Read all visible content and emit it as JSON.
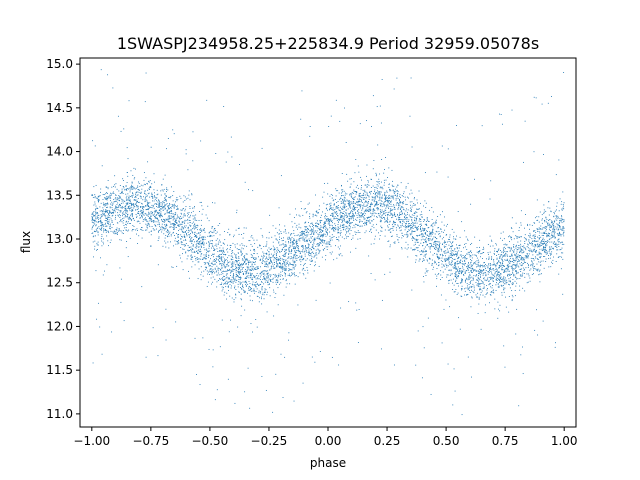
{
  "chart_data": {
    "type": "scatter",
    "title": "1SWASPJ234958.25+225834.9 Period 32959.05078s",
    "xlabel": "phase",
    "ylabel": "flux",
    "xlim": [
      -1.05,
      1.05
    ],
    "ylim": [
      10.85,
      15.07
    ],
    "xticks": [
      -1.0,
      -0.75,
      -0.5,
      -0.25,
      0.0,
      0.25,
      0.5,
      0.75,
      1.0
    ],
    "xtick_labels": [
      "−1.00",
      "−0.75",
      "−0.50",
      "−0.25",
      "0.00",
      "0.25",
      "0.50",
      "0.75",
      "1.00"
    ],
    "yticks": [
      11.0,
      11.5,
      12.0,
      12.5,
      13.0,
      13.5,
      14.0,
      14.5,
      15.0
    ],
    "ytick_labels": [
      "11.0",
      "11.5",
      "12.0",
      "12.5",
      "13.0",
      "13.5",
      "14.0",
      "14.5",
      "15.0"
    ],
    "grid": false,
    "point_color": "#1f77b4",
    "x_range": [
      -1.0,
      1.0
    ],
    "trend_phase": [
      -1.0,
      -0.9,
      -0.8,
      -0.7,
      -0.6,
      -0.5,
      -0.4,
      -0.3,
      -0.2,
      -0.1,
      0.0,
      0.1,
      0.2,
      0.3,
      0.4,
      0.5,
      0.6,
      0.7,
      0.8,
      0.9,
      1.0
    ],
    "trend_flux": [
      13.2,
      13.35,
      13.4,
      13.3,
      13.1,
      12.85,
      12.65,
      12.6,
      12.75,
      12.95,
      13.15,
      13.35,
      13.4,
      13.3,
      13.05,
      12.8,
      12.6,
      12.6,
      12.75,
      12.95,
      13.15
    ]
  }
}
